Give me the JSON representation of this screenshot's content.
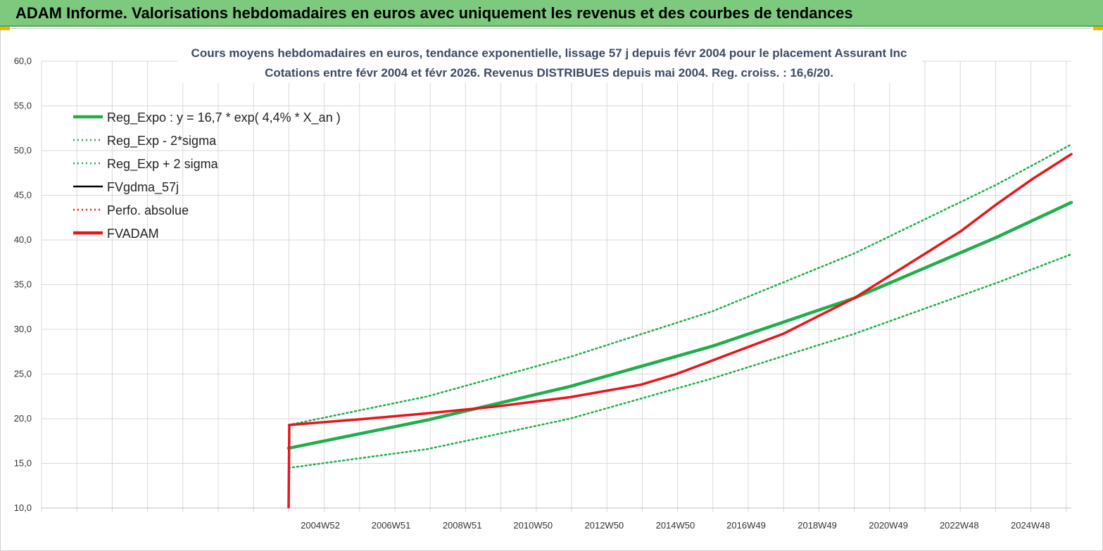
{
  "banner": {
    "title": "ADAM Informe. Valorisations hebdomadaires en euros avec uniquement les revenus et des courbes de tendances"
  },
  "colors": {
    "banner": "#7dc97d",
    "reg": "#1fae4b",
    "fv": "#e8141b",
    "gdma": "#000000"
  },
  "chart_data": {
    "type": "line",
    "title_lines": [
      "Cours moyens hebdomadaires en euros, tendance exponentielle, lissage 57 j depuis févr 2004 pour le placement Assurant Inc",
      "Cotations entre févr 2004 et févr 2026. Revenus DISTRIBUES depuis mai 2004. Reg. croiss. : 16,6/20."
    ],
    "xlabel": "",
    "ylabel": "",
    "x_range": [
      2004.1,
      2026.1
    ],
    "ylim": [
      10,
      60
    ],
    "y_ticks": [
      "10,0",
      "15,0",
      "20,0",
      "25,0",
      "30,0",
      "35,0",
      "40,0",
      "45,0",
      "50,0",
      "55,0",
      "60,0"
    ],
    "x_ticks": [
      {
        "label": "2004W52",
        "x": 2004.99
      },
      {
        "label": "2006W51",
        "x": 2006.98
      },
      {
        "label": "2008W51",
        "x": 2008.98
      },
      {
        "label": "2010W50",
        "x": 2010.97
      },
      {
        "label": "2012W50",
        "x": 2012.97
      },
      {
        "label": "2014W50",
        "x": 2014.97
      },
      {
        "label": "2016W49",
        "x": 2016.96
      },
      {
        "label": "2018W49",
        "x": 2018.96
      },
      {
        "label": "2020W49",
        "x": 2020.96
      },
      {
        "label": "2022W48",
        "x": 2022.95
      },
      {
        "label": "2024W48",
        "x": 2024.95
      }
    ],
    "grid": true,
    "legend_position": "top-left",
    "legend": [
      {
        "label": "Reg_Expo : y = 16,7 * exp( 4,4% *  X_an )",
        "color": "#1fae4b",
        "style": "solid-thick"
      },
      {
        "label": "Reg_Exp - 2*sigma",
        "color": "#1fae4b",
        "style": "dotted"
      },
      {
        "label": "Reg_Exp + 2 sigma",
        "color": "#1fae4b",
        "style": "dotted"
      },
      {
        "label": "FVgdma_57j",
        "color": "#000000",
        "style": "solid"
      },
      {
        "label": "Perfo. absolue",
        "color": "#e8141b",
        "style": "dotted"
      },
      {
        "label": "FVADAM",
        "color": "#e8141b",
        "style": "solid-thick"
      }
    ],
    "series": [
      {
        "name": "Reg_Expo : y = 16,7 * exp( 4,4% *  X_an )",
        "points": [
          [
            2004.1,
            16.7
          ],
          [
            2008,
            19.85
          ],
          [
            2012,
            23.6
          ],
          [
            2016,
            28.1
          ],
          [
            2020,
            33.5
          ],
          [
            2024,
            40.3
          ],
          [
            2026.1,
            44.2
          ]
        ]
      },
      {
        "name": "Reg_Exp - 2*sigma",
        "points": [
          [
            2004.1,
            14.5
          ],
          [
            2008,
            16.6
          ],
          [
            2012,
            20.0
          ],
          [
            2016,
            24.5
          ],
          [
            2020,
            29.5
          ],
          [
            2024,
            35.2
          ],
          [
            2026.1,
            38.4
          ]
        ]
      },
      {
        "name": "Reg_Exp + 2 sigma",
        "points": [
          [
            2004.1,
            19.3
          ],
          [
            2008,
            22.5
          ],
          [
            2012,
            26.9
          ],
          [
            2016,
            32.0
          ],
          [
            2020,
            38.5
          ],
          [
            2024,
            46.2
          ],
          [
            2026.1,
            50.7
          ]
        ]
      },
      {
        "name": "FVgdma_57j",
        "points": [
          [
            2004.1,
            10.1
          ],
          [
            2004.12,
            19.3
          ],
          [
            2006,
            19.9
          ],
          [
            2008,
            20.6
          ],
          [
            2010,
            21.4
          ],
          [
            2012,
            22.4
          ],
          [
            2014,
            23.8
          ],
          [
            2015,
            25.0
          ],
          [
            2016,
            26.5
          ],
          [
            2017,
            28.0
          ],
          [
            2018,
            29.5
          ],
          [
            2019,
            31.5
          ],
          [
            2020,
            33.5
          ],
          [
            2021,
            36.0
          ],
          [
            2022,
            38.5
          ],
          [
            2023,
            41.0
          ],
          [
            2024,
            44.0
          ],
          [
            2025,
            46.8
          ],
          [
            2026.1,
            49.6
          ]
        ]
      },
      {
        "name": "FVADAM",
        "points": [
          [
            2004.1,
            10.1
          ],
          [
            2004.12,
            19.3
          ],
          [
            2006,
            19.9
          ],
          [
            2008,
            20.6
          ],
          [
            2010,
            21.4
          ],
          [
            2012,
            22.4
          ],
          [
            2014,
            23.8
          ],
          [
            2015,
            25.0
          ],
          [
            2016,
            26.5
          ],
          [
            2017,
            28.0
          ],
          [
            2018,
            29.5
          ],
          [
            2019,
            31.5
          ],
          [
            2020,
            33.5
          ],
          [
            2021,
            36.0
          ],
          [
            2022,
            38.5
          ],
          [
            2023,
            41.0
          ],
          [
            2024,
            44.0
          ],
          [
            2025,
            46.8
          ],
          [
            2026.1,
            49.6
          ]
        ]
      }
    ]
  }
}
